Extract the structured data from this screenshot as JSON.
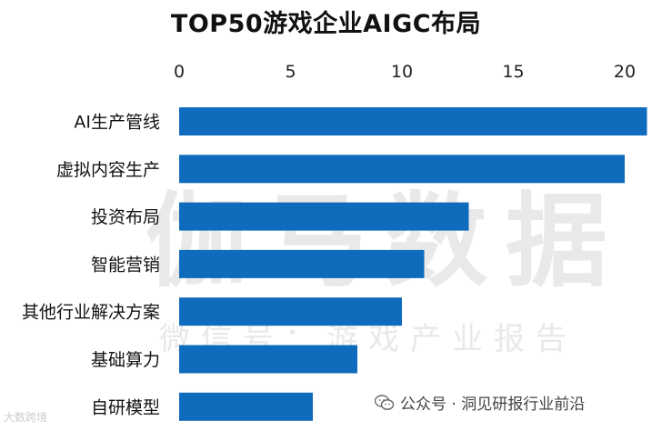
{
  "chart_data": {
    "type": "bar",
    "orientation": "horizontal",
    "title": "TOP50游戏企业AIGC布局",
    "categories": [
      "AI生产管线",
      "虚拟内容生产",
      "投资布局",
      "智能营销",
      "其他行业解决方案",
      "基础算力",
      "自研模型"
    ],
    "values": [
      21,
      20,
      13,
      11,
      10,
      8,
      6
    ],
    "xlim": [
      0,
      21
    ],
    "xticks": [
      0,
      5,
      10,
      15,
      20
    ],
    "axis_position": "top",
    "grid": false,
    "bar_color": "#0f6cbd"
  },
  "watermark": {
    "main": "伽马数据",
    "sub": "微信号：游戏产业报告"
  },
  "caption": {
    "text": "公众号 · 洞见研报行业前沿",
    "icon": "wechat-icon"
  },
  "badge": {
    "text": "大数跨境"
  }
}
